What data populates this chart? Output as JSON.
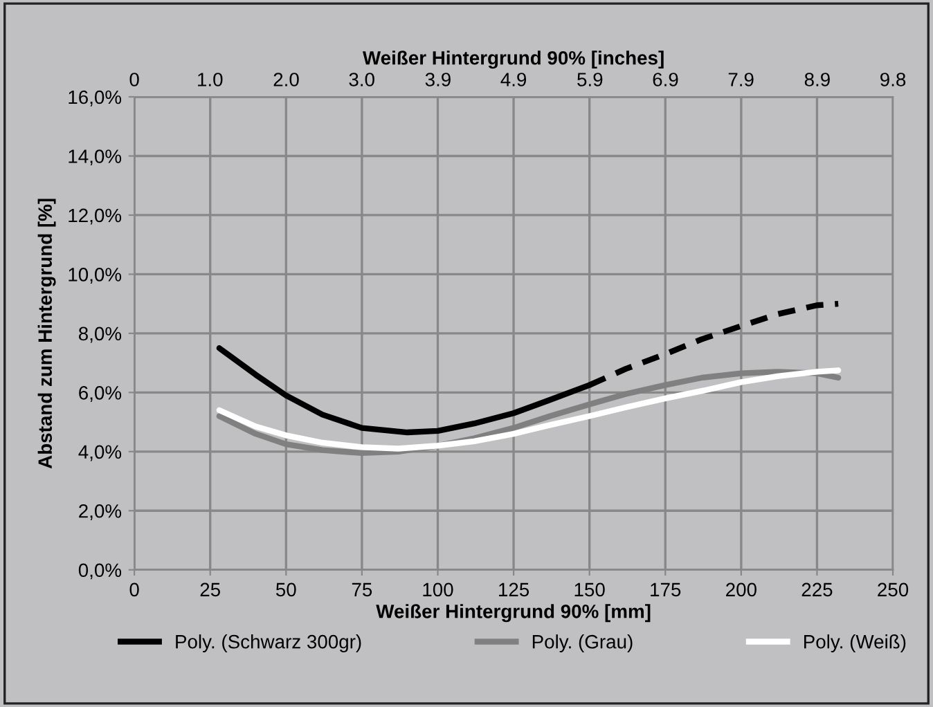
{
  "chart_data": {
    "type": "line",
    "xlabel": "Weißer Hintergrund 90% [mm]",
    "x2label": "Weißer Hintergrund 90% [inches]",
    "ylabel": "Abstand zum Hintergrund [%]",
    "xlim": [
      0,
      250
    ],
    "xticks": [
      0,
      25,
      50,
      75,
      100,
      125,
      150,
      175,
      200,
      225,
      250
    ],
    "x2lim": [
      0,
      9.84
    ],
    "x2ticks": [
      0,
      {
        "value": 0.98,
        "label": "1.0"
      },
      {
        "value": 1.97,
        "label": "2.0"
      },
      {
        "value": 2.95,
        "label": "3.0"
      },
      {
        "value": 3.94,
        "label": "3.9"
      },
      {
        "value": 4.92,
        "label": "4.9"
      },
      {
        "value": 5.91,
        "label": "5.9"
      },
      {
        "value": 6.89,
        "label": "6.9"
      },
      {
        "value": 7.87,
        "label": "7.9"
      },
      {
        "value": 8.86,
        "label": "8.9"
      },
      {
        "value": 9.84,
        "label": "9.8"
      }
    ],
    "ylim": [
      0,
      16
    ],
    "yticks": [
      {
        "value": 0,
        "label": "0,0%"
      },
      {
        "value": 2,
        "label": "2,0%"
      },
      {
        "value": 4,
        "label": "4,0%"
      },
      {
        "value": 6,
        "label": "6,0%"
      },
      {
        "value": 8,
        "label": "8,0%"
      },
      {
        "value": 10,
        "label": "10,0%"
      },
      {
        "value": 12,
        "label": "12,0%"
      },
      {
        "value": 14,
        "label": "14,0%"
      },
      {
        "value": 16,
        "label": "16,0%"
      }
    ],
    "grid": true,
    "legend": "bottom",
    "marker": "none",
    "series": [
      {
        "name": "Poly. (Schwarz 300gr)",
        "color": "#000000",
        "line_style": "solid",
        "x": [
          28,
          40,
          50,
          62,
          75,
          90,
          100,
          112,
          125,
          137,
          150
        ],
        "values": [
          7.5,
          6.6,
          5.9,
          5.25,
          4.8,
          4.65,
          4.7,
          4.95,
          5.3,
          5.75,
          6.25
        ]
      },
      {
        "color": "#000000",
        "line_style": "dashed",
        "x": [
          150,
          162,
          175,
          187,
          200,
          212,
          225,
          232
        ],
        "values": [
          6.25,
          6.8,
          7.3,
          7.8,
          8.25,
          8.65,
          8.95,
          9.0
        ]
      },
      {
        "name": "Poly. (Grau)",
        "color": "#808080",
        "line_style": "solid",
        "x": [
          28,
          40,
          50,
          62,
          75,
          87,
          100,
          112,
          125,
          137,
          150,
          162,
          175,
          187,
          200,
          212,
          225,
          232
        ],
        "values": [
          5.2,
          4.6,
          4.25,
          4.05,
          3.95,
          4.0,
          4.2,
          4.45,
          4.8,
          5.2,
          5.6,
          5.95,
          6.25,
          6.5,
          6.65,
          6.7,
          6.65,
          6.5
        ]
      },
      {
        "name": "Poly. (Weiß)",
        "color": "#ffffff",
        "line_style": "solid",
        "x": [
          28,
          40,
          50,
          62,
          75,
          87,
          100,
          112,
          125,
          137,
          150,
          162,
          175,
          187,
          200,
          212,
          225,
          232
        ],
        "values": [
          5.4,
          4.85,
          4.55,
          4.3,
          4.15,
          4.1,
          4.2,
          4.35,
          4.6,
          4.9,
          5.2,
          5.5,
          5.8,
          6.05,
          6.35,
          6.55,
          6.7,
          6.75
        ]
      }
    ]
  }
}
